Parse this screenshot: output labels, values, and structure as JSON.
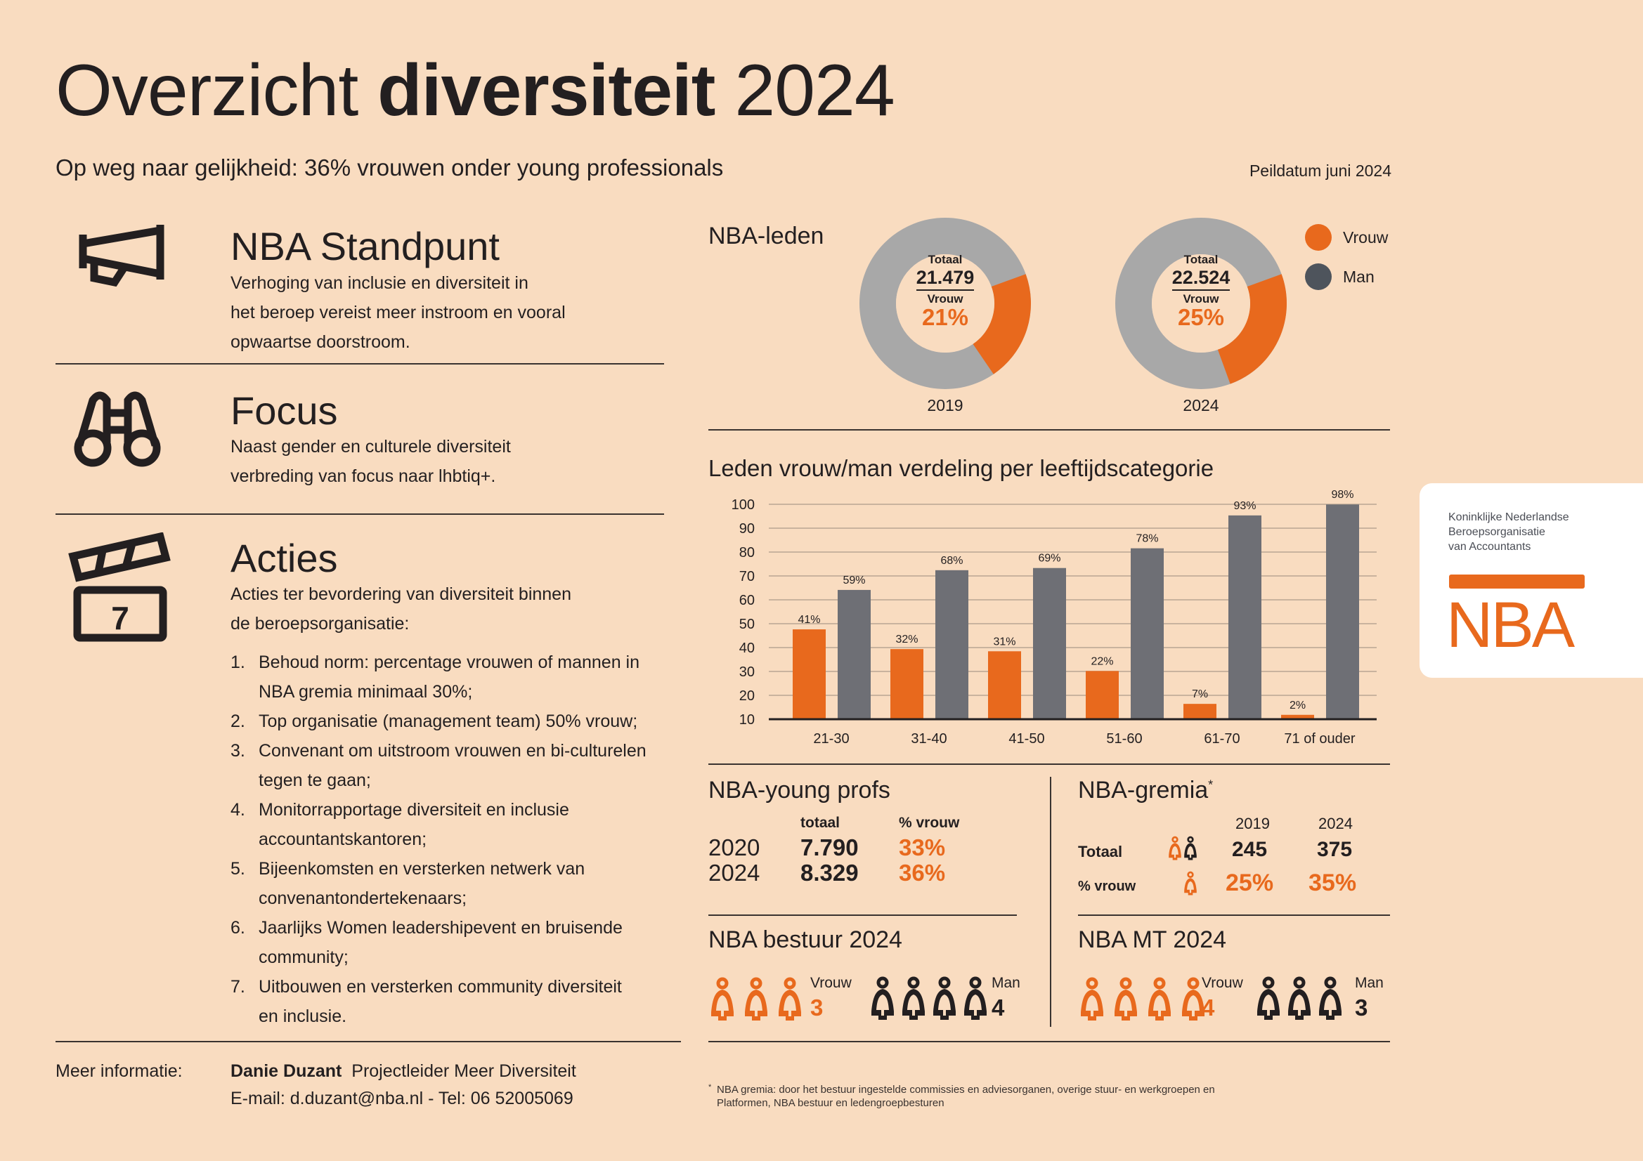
{
  "header": {
    "title_light": "Overzicht",
    "title_bold": "diversiteit",
    "title_year": "2024",
    "subtitle": "Op weg naar gelijkheid: 36% vrouwen onder young professionals",
    "peildatum": "Peildatum juni 2024"
  },
  "standpunt": {
    "title": "NBA Standpunt",
    "lines": [
      "Verhoging van inclusie en diversiteit in",
      "het beroep vereist meer instroom en vooral",
      "opwaartse doorstroom."
    ]
  },
  "focus": {
    "title": "Focus",
    "lines": [
      "Naast gender en culturele diversiteit",
      "verbreding van focus naar lhbtiq+."
    ]
  },
  "acties": {
    "title": "Acties",
    "icon_number": "7",
    "intro": [
      "Acties ter bevordering van diversiteit binnen",
      "de beroepsorganisatie:"
    ],
    "items": [
      {
        "num": "1.",
        "lines": [
          "Behoud norm: percentage vrouwen of mannen in",
          "NBA gremia minimaal 30%;"
        ]
      },
      {
        "num": "2.",
        "lines": [
          "Top organisatie (management team) 50% vrouw;"
        ]
      },
      {
        "num": "3.",
        "lines": [
          "Convenant om uitstroom vrouwen en bi-culturelen",
          "tegen te gaan;"
        ]
      },
      {
        "num": "4.",
        "lines": [
          "Monitorrapportage diversiteit en inclusie",
          "accountantskantoren;"
        ]
      },
      {
        "num": "5.",
        "lines": [
          "Bijeenkomsten en versterken netwerk van",
          "convenantondertekenaars;"
        ]
      },
      {
        "num": "6.",
        "lines": [
          "Jaarlijks Women leadershipevent en bruisende",
          "community;"
        ]
      },
      {
        "num": "7.",
        "lines": [
          "Uitbouwen en versterken community diversiteit",
          "en inclusie."
        ]
      }
    ]
  },
  "contact": {
    "label": "Meer informatie:",
    "name": "Danie Duzant",
    "role": "Projectleider Meer Diversiteit",
    "line2": "E-mail: d.duzant@nba.nl - Tel: 06 52005069"
  },
  "leden": {
    "title": "NBA-leden",
    "legend": [
      {
        "label": "Vrouw",
        "color": "#E8691D"
      },
      {
        "label": "Man",
        "color": "#4E545C"
      }
    ],
    "donuts": [
      {
        "year": "2019",
        "totaal_label": "Totaal",
        "totaal": "21.479",
        "vrouw_label": "Vrouw",
        "vrouw_pct_text": "21%",
        "vrouw_pct": 21
      },
      {
        "year": "2024",
        "totaal_label": "Totaal",
        "totaal": "22.524",
        "vrouw_label": "Vrouw",
        "vrouw_pct_text": "25%",
        "vrouw_pct": 25
      }
    ]
  },
  "chart_data": {
    "type": "bar",
    "title": "Leden vrouw/man verdeling per leeftijdscategorie",
    "categories": [
      "21-30",
      "31-40",
      "41-50",
      "51-60",
      "61-70",
      "71 of ouder"
    ],
    "series": [
      {
        "name": "Vrouw",
        "color": "#E8691D",
        "values": [
          41,
          32,
          31,
          22,
          7,
          2
        ],
        "labels": [
          "41%",
          "32%",
          "31%",
          "22%",
          "7%",
          "2%"
        ]
      },
      {
        "name": "Man",
        "color": "#6E6F75",
        "values": [
          59,
          68,
          69,
          78,
          93,
          98
        ],
        "labels": [
          "59%",
          "68%",
          "69%",
          "78%",
          "93%",
          "98%"
        ]
      }
    ],
    "yticks": [
      "100",
      "90",
      "80",
      "70",
      "60",
      "50",
      "40",
      "30",
      "20",
      "10"
    ],
    "ylim": [
      0,
      100
    ],
    "grid": true,
    "xlabel": "",
    "ylabel": ""
  },
  "young": {
    "title": "NBA-young profs",
    "col_totaal": "totaal",
    "col_vrouw": "% vrouw",
    "rows": [
      {
        "year": "2020",
        "totaal": "7.790",
        "vrouw": "33%"
      },
      {
        "year": "2024",
        "totaal": "8.329",
        "vrouw": "36%"
      }
    ]
  },
  "gremia": {
    "title": "NBA-gremia",
    "asterisk": "*",
    "years": [
      "2019",
      "2024"
    ],
    "totaal_label": "Totaal",
    "totaal": [
      "245",
      "375"
    ],
    "vrouw_label": "% vrouw",
    "vrouw": [
      "25%",
      "35%"
    ]
  },
  "bestuur": {
    "title": "NBA bestuur 2024",
    "vrouw_label": "Vrouw",
    "vrouw": 3,
    "man_label": "Man",
    "man": 4
  },
  "mt": {
    "title": "NBA MT 2024",
    "vrouw_label": "Vrouw",
    "vrouw": 4,
    "man_label": "Man",
    "man": 3
  },
  "footnote": {
    "mark": "*",
    "lines": [
      "NBA gremia: door het bestuur ingestelde commissies en adviesorganen, overige stuur- en werkgroepen en",
      "Platformen, NBA bestuur en ledengroepbesturen"
    ]
  },
  "logo": {
    "lines": [
      "Koninklijke Nederlandse",
      "Beroepsorganisatie",
      "van Accountants"
    ],
    "mark": "NBA"
  }
}
